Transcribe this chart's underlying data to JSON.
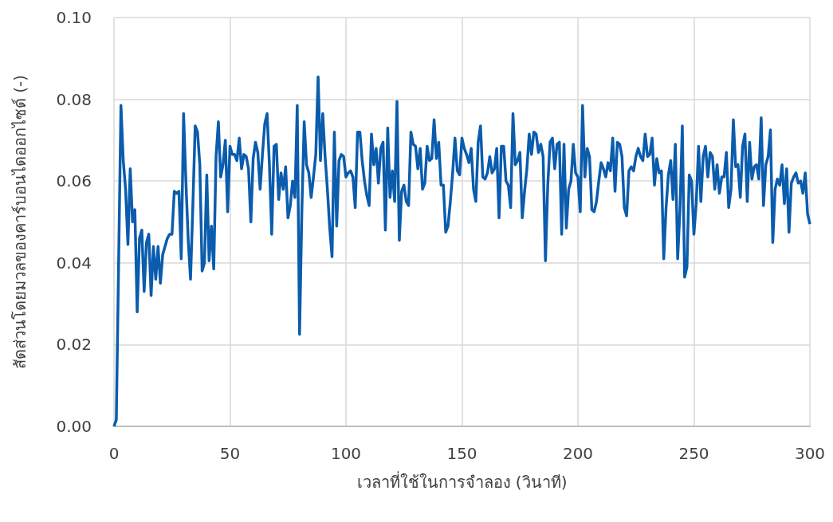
{
  "chart_data": {
    "type": "line",
    "xlabel": "เวลาที่ใช้ในการจำลอง (วินาที)",
    "ylabel": "สัดส่วนโดยมวลของคาร์บอนไดออกไซด์ (-)",
    "x": [
      0,
      1,
      2,
      3,
      4,
      5,
      6,
      7,
      8,
      9,
      10,
      11,
      12,
      13,
      14,
      15,
      16,
      17,
      18,
      19,
      20,
      21,
      22,
      23,
      24,
      25,
      26,
      27,
      28,
      29,
      30,
      31,
      32,
      33,
      34,
      35,
      36,
      37,
      38,
      39,
      40,
      41,
      42,
      43,
      44,
      45,
      46,
      47,
      48,
      49,
      50,
      51,
      52,
      53,
      54,
      55,
      56,
      57,
      58,
      59,
      60,
      61,
      62,
      63,
      64,
      65,
      66,
      67,
      68,
      69,
      70,
      71,
      72,
      73,
      74,
      75,
      76,
      77,
      78,
      79,
      80,
      81,
      82,
      83,
      84,
      85,
      86,
      87,
      88,
      89,
      90,
      91,
      92,
      93,
      94,
      95,
      96,
      97,
      98,
      99,
      100,
      101,
      102,
      103,
      104,
      105,
      106,
      107,
      108,
      109,
      110,
      111,
      112,
      113,
      114,
      115,
      116,
      117,
      118,
      119,
      120,
      121,
      122,
      123,
      124,
      125,
      126,
      127,
      128,
      129,
      130,
      131,
      132,
      133,
      134,
      135,
      136,
      137,
      138,
      139,
      140,
      141,
      142,
      143,
      144,
      145,
      146,
      147,
      148,
      149,
      150,
      151,
      152,
      153,
      154,
      155,
      156,
      157,
      158,
      159,
      160,
      161,
      162,
      163,
      164,
      165,
      166,
      167,
      168,
      169,
      170,
      171,
      172,
      173,
      174,
      175,
      176,
      177,
      178,
      179,
      180,
      181,
      182,
      183,
      184,
      185,
      186,
      187,
      188,
      189,
      190,
      191,
      192,
      193,
      194,
      195,
      196,
      197,
      198,
      199,
      200,
      201,
      202,
      203,
      204,
      205,
      206,
      207,
      208,
      209,
      210,
      211,
      212,
      213,
      214,
      215,
      216,
      217,
      218,
      219,
      220,
      221,
      222,
      223,
      224,
      225,
      226,
      227,
      228,
      229,
      230,
      231,
      232,
      233,
      234,
      235,
      236,
      237,
      238,
      239,
      240,
      241,
      242,
      243,
      244,
      245,
      246,
      247,
      248,
      249,
      250,
      251,
      252,
      253,
      254,
      255,
      256,
      257,
      258,
      259,
      260,
      261,
      262,
      263,
      264,
      265,
      266,
      267,
      268,
      269,
      270,
      271,
      272,
      273,
      274,
      275,
      276,
      277,
      278,
      279,
      280,
      281,
      282,
      283,
      284,
      285,
      286,
      287,
      288,
      289,
      290,
      291,
      292,
      293,
      294,
      295,
      296,
      297,
      298,
      299,
      300
    ],
    "series": [
      {
        "color": "#0b5cad",
        "values": [
          0,
          0.0016,
          0.04,
          0.0785,
          0.065,
          0.058,
          0.0445,
          0.063,
          0.05,
          0.053,
          0.028,
          0.046,
          0.048,
          0.033,
          0.045,
          0.047,
          0.032,
          0.044,
          0.036,
          0.044,
          0.035,
          0.042,
          0.044,
          0.046,
          0.047,
          0.047,
          0.0575,
          0.057,
          0.0575,
          0.041,
          0.0765,
          0.06,
          0.0455,
          0.036,
          0.054,
          0.0735,
          0.072,
          0.064,
          0.038,
          0.04,
          0.0615,
          0.0405,
          0.049,
          0.0385,
          0.066,
          0.0745,
          0.061,
          0.064,
          0.07,
          0.0525,
          0.0685,
          0.0665,
          0.0665,
          0.065,
          0.0705,
          0.063,
          0.0665,
          0.066,
          0.063,
          0.05,
          0.0655,
          0.0695,
          0.067,
          0.058,
          0.0665,
          0.074,
          0.0765,
          0.064,
          0.047,
          0.0685,
          0.069,
          0.0555,
          0.062,
          0.058,
          0.0635,
          0.051,
          0.054,
          0.06,
          0.056,
          0.0785,
          0.0225,
          0.053,
          0.0745,
          0.064,
          0.062,
          0.056,
          0.061,
          0.0665,
          0.0855,
          0.065,
          0.0765,
          0.066,
          0.058,
          0.0485,
          0.0415,
          0.072,
          0.049,
          0.065,
          0.0665,
          0.066,
          0.061,
          0.062,
          0.0625,
          0.061,
          0.0535,
          0.072,
          0.072,
          0.065,
          0.06,
          0.0565,
          0.054,
          0.0715,
          0.064,
          0.068,
          0.0595,
          0.068,
          0.0695,
          0.048,
          0.073,
          0.056,
          0.0625,
          0.055,
          0.0795,
          0.0455,
          0.0575,
          0.059,
          0.055,
          0.054,
          0.072,
          0.069,
          0.0685,
          0.063,
          0.068,
          0.058,
          0.0595,
          0.0685,
          0.065,
          0.0655,
          0.075,
          0.0655,
          0.0695,
          0.059,
          0.059,
          0.0475,
          0.049,
          0.055,
          0.062,
          0.0705,
          0.0625,
          0.0615,
          0.0705,
          0.068,
          0.0665,
          0.0645,
          0.068,
          0.058,
          0.055,
          0.0695,
          0.0735,
          0.061,
          0.0605,
          0.062,
          0.066,
          0.062,
          0.063,
          0.068,
          0.051,
          0.0685,
          0.0685,
          0.06,
          0.059,
          0.0535,
          0.0765,
          0.064,
          0.065,
          0.067,
          0.051,
          0.0575,
          0.063,
          0.0715,
          0.0665,
          0.072,
          0.0715,
          0.067,
          0.069,
          0.066,
          0.0405,
          0.059,
          0.0695,
          0.0705,
          0.063,
          0.069,
          0.0695,
          0.047,
          0.069,
          0.0485,
          0.058,
          0.06,
          0.069,
          0.062,
          0.061,
          0.0525,
          0.0785,
          0.061,
          0.068,
          0.066,
          0.053,
          0.0525,
          0.055,
          0.06,
          0.0645,
          0.063,
          0.061,
          0.0645,
          0.0625,
          0.0705,
          0.0575,
          0.0695,
          0.069,
          0.066,
          0.0535,
          0.0515,
          0.0625,
          0.0635,
          0.0625,
          0.066,
          0.068,
          0.066,
          0.065,
          0.0715,
          0.066,
          0.0665,
          0.0705,
          0.059,
          0.0655,
          0.062,
          0.0625,
          0.041,
          0.0535,
          0.0615,
          0.065,
          0.0555,
          0.069,
          0.041,
          0.053,
          0.0735,
          0.0365,
          0.039,
          0.0615,
          0.06,
          0.047,
          0.0545,
          0.0685,
          0.055,
          0.066,
          0.0685,
          0.061,
          0.067,
          0.066,
          0.058,
          0.064,
          0.057,
          0.061,
          0.061,
          0.067,
          0.0535,
          0.058,
          0.075,
          0.0635,
          0.064,
          0.056,
          0.0685,
          0.0715,
          0.055,
          0.0695,
          0.0605,
          0.0635,
          0.064,
          0.0605,
          0.0755,
          0.054,
          0.064,
          0.066,
          0.0725,
          0.045,
          0.058,
          0.0605,
          0.059,
          0.064,
          0.0545,
          0.063,
          0.0475,
          0.0595,
          0.061,
          0.062,
          0.0595,
          0.06,
          0.057,
          0.062,
          0.052,
          0.0495
        ]
      }
    ],
    "xlim": [
      0,
      300
    ],
    "xticks": [
      0,
      50,
      100,
      150,
      200,
      250,
      300
    ],
    "ylim": [
      0,
      0.1
    ],
    "yticks": [
      {
        "value": 0,
        "label": "0.00"
      },
      {
        "value": 0.02,
        "label": "0.02"
      },
      {
        "value": 0.04,
        "label": "0.04"
      },
      {
        "value": 0.06,
        "label": "0.06"
      },
      {
        "value": 0.08,
        "label": "0.08"
      },
      {
        "value": 0.1,
        "label": "0.10"
      }
    ],
    "grid": true,
    "marker": "none",
    "line_style": "solid"
  }
}
